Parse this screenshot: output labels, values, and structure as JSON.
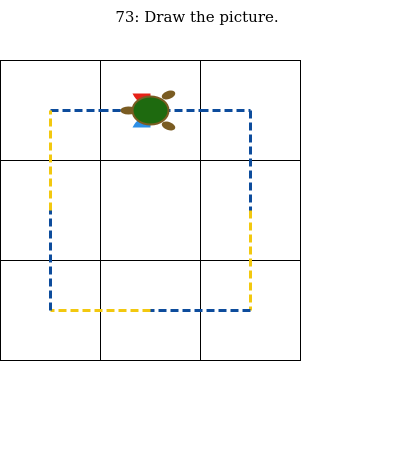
{
  "puzzle": {
    "title": "73: Draw the picture."
  },
  "grid": {
    "rows": 3,
    "cols": 3
  },
  "path": {
    "segments": [
      {
        "from": [
          0.5,
          0.5
        ],
        "to": [
          1.0,
          0.5
        ],
        "color": "#0d4c9c",
        "style": "dashed"
      },
      {
        "from": [
          1.0,
          0.5
        ],
        "to": [
          1.5,
          0.5
        ],
        "color": "#0d4c9c",
        "style": "dashed"
      },
      {
        "from": [
          1.5,
          0.5
        ],
        "to": [
          2.0,
          0.5
        ],
        "color": "#0d4c9c",
        "style": "dashed"
      },
      {
        "from": [
          2.0,
          0.5
        ],
        "to": [
          2.5,
          0.5
        ],
        "color": "#0d4c9c",
        "style": "dashed"
      },
      {
        "from": [
          2.5,
          0.5
        ],
        "to": [
          2.5,
          1.5
        ],
        "color": "#0d4c9c",
        "style": "dashed"
      },
      {
        "from": [
          2.5,
          1.5
        ],
        "to": [
          2.5,
          2.5
        ],
        "color": "#f2c80f",
        "style": "dashed"
      },
      {
        "from": [
          2.5,
          2.5
        ],
        "to": [
          1.5,
          2.5
        ],
        "color": "#0d4c9c",
        "style": "dashed"
      },
      {
        "from": [
          1.5,
          2.5
        ],
        "to": [
          0.5,
          2.5
        ],
        "color": "#f2c80f",
        "style": "dashed"
      },
      {
        "from": [
          0.5,
          2.5
        ],
        "to": [
          0.5,
          1.5
        ],
        "color": "#0d4c9c",
        "style": "dashed"
      },
      {
        "from": [
          0.5,
          1.5
        ],
        "to": [
          0.5,
          0.5
        ],
        "color": "#f2c80f",
        "style": "dashed"
      }
    ]
  },
  "turtle": {
    "position": [
      1.5,
      0.5
    ],
    "heading": "east",
    "shell_color": "#1e6a0f",
    "body_color": "#7a5c22",
    "left_marker_color": "#e62117",
    "right_marker_color": "#2e8fe6"
  },
  "colors": {
    "background": "#ffffff",
    "grid_line": "#000000"
  }
}
